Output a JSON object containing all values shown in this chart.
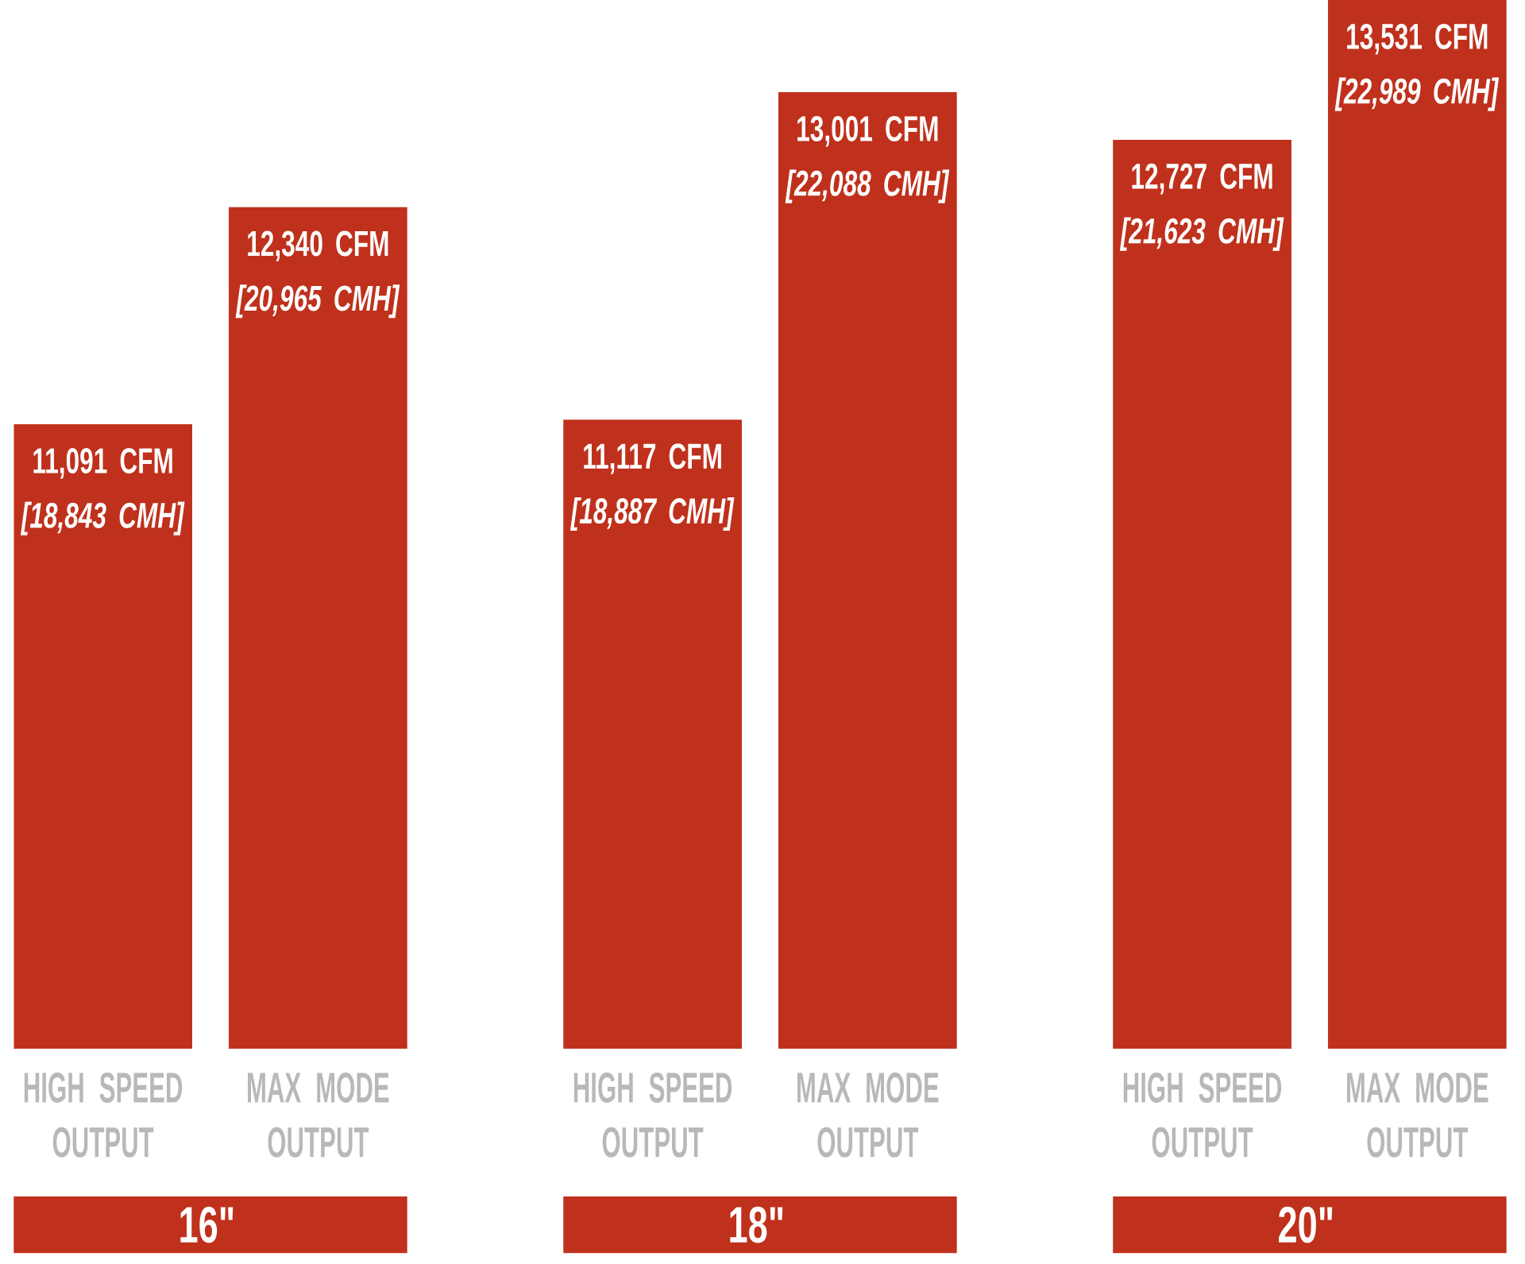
{
  "chart_data": {
    "type": "bar",
    "categories": [
      "HIGH SPEED OUTPUT",
      "MAX MODE OUTPUT",
      "HIGH SPEED OUTPUT",
      "MAX MODE OUTPUT",
      "HIGH SPEED OUTPUT",
      "MAX MODE OUTPUT"
    ],
    "values": [
      11091,
      12340,
      11117,
      13001,
      12727,
      13531
    ],
    "value_labels": [
      "11,091 CFM *[18,843 CMH]*",
      "12,340 CFM *[20,965 CMH]*",
      "11,117 CFM *[18,887 CMH]*",
      "13,001 CFM *[22,088 CMH]*",
      "12,727 CFM *[21,623 CMH]*",
      "13,531 CFM *[22,989 CMH]*"
    ],
    "color": "#bf311c",
    "ylim": [
      7500,
      13531
    ],
    "annotations": [
      "16\"",
      "18\"",
      "20\""
    ]
  }
}
